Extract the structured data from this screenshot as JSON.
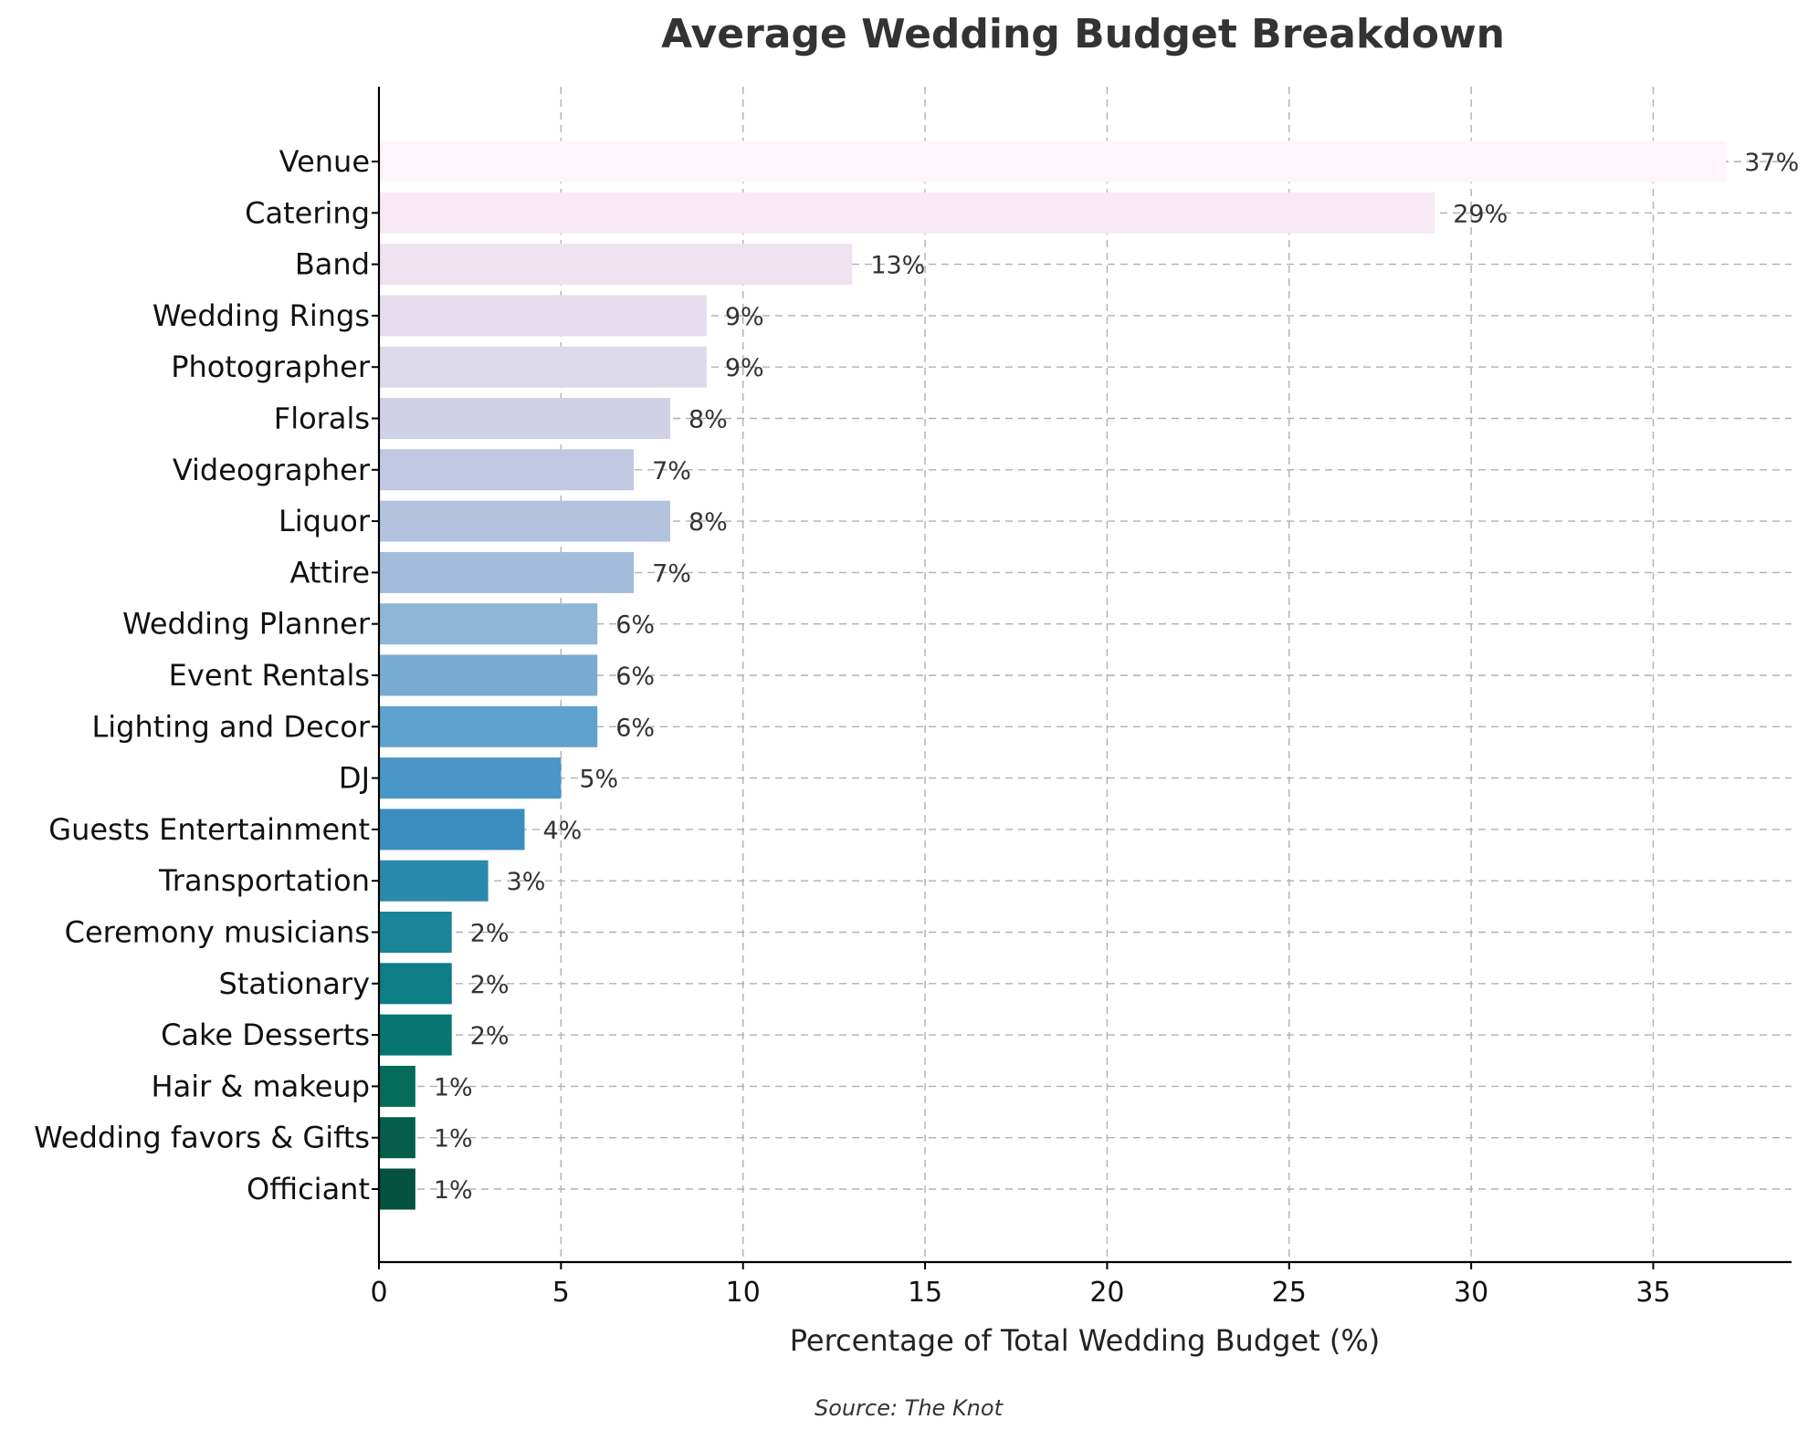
{
  "chart_data": {
    "type": "bar",
    "orientation": "horizontal",
    "title": "Average Wedding Budget Breakdown",
    "xlabel": "Percentage of Total Wedding Budget (%)",
    "ylabel": "",
    "source": "Source: The Knot",
    "xlim": [
      0,
      38.8
    ],
    "xticks": [
      0,
      5,
      10,
      15,
      20,
      25,
      30,
      35
    ],
    "grid": true,
    "value_suffix": "%",
    "categories": [
      "Venue",
      "Catering",
      "Band",
      "Wedding Rings",
      "Photographer",
      "Florals",
      "Videographer",
      "Liquor",
      "Attire",
      "Wedding Planner",
      "Event Rentals",
      "Lighting and Decor",
      "DJ",
      "Guests Entertainment",
      "Transportation",
      "Ceremony musicians",
      "Stationary",
      "Cake Desserts",
      "Hair & makeup",
      "Wedding favors & Gifts",
      "Officiant"
    ],
    "values": [
      37,
      29,
      13,
      9,
      9,
      8,
      7,
      8,
      7,
      6,
      6,
      6,
      5,
      4,
      3,
      2,
      2,
      2,
      1,
      1,
      1
    ],
    "colors": [
      "#fff5fb",
      "#f8eaf5",
      "#f0e3f0",
      "#e6deee",
      "#dcd9e9",
      "#d0d0e6",
      "#c3c8e2",
      "#b3c3df",
      "#a3bcda",
      "#90b6d6",
      "#78abd2",
      "#60a2ce",
      "#4a96c6",
      "#3b8cbf",
      "#2a89ad",
      "#1a8598",
      "#0d7d86",
      "#087670",
      "#056b5a",
      "#045e4a",
      "#03513e"
    ]
  }
}
